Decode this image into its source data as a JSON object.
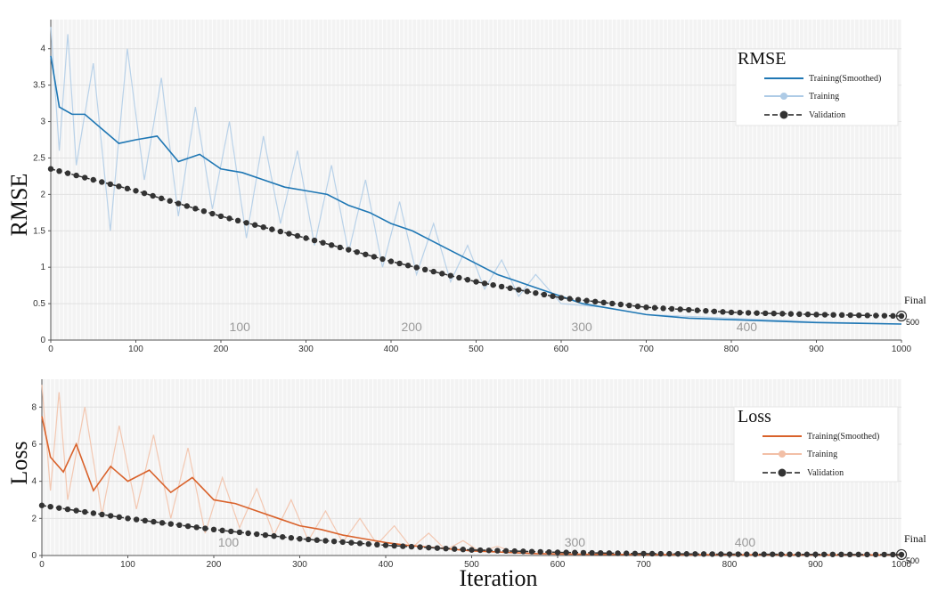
{
  "chart_data": [
    {
      "type": "line",
      "panel": "top",
      "legend_title": "RMSE",
      "ylabel": "RMSE",
      "xlabel": "",
      "legend_position": "top-right",
      "grid": true,
      "xlim": [
        0,
        1000
      ],
      "ylim": [
        0,
        4.4
      ],
      "xticks": [
        0,
        100,
        200,
        300,
        400,
        500,
        600,
        700,
        800,
        900,
        1000
      ],
      "yticks": [
        0,
        0.5,
        1,
        1.5,
        2,
        2.5,
        3,
        3.5,
        4
      ],
      "epoch_markers": [
        {
          "x": 210,
          "label": "100"
        },
        {
          "x": 412,
          "label": "200"
        },
        {
          "x": 612,
          "label": "300"
        },
        {
          "x": 806,
          "label": "400"
        }
      ],
      "final_marker": {
        "x": 1000,
        "y": 0.33,
        "label": "Final",
        "sublabel": "500"
      },
      "series": [
        {
          "name": "Training(Smoothed)",
          "color": "#1f77b4",
          "x": [
            0,
            10,
            25,
            40,
            60,
            80,
            100,
            125,
            150,
            175,
            200,
            225,
            250,
            275,
            300,
            325,
            350,
            375,
            400,
            425,
            450,
            475,
            500,
            525,
            550,
            575,
            600,
            625,
            650,
            675,
            700,
            750,
            800,
            850,
            900,
            950,
            1000
          ],
          "y": [
            3.9,
            3.2,
            3.1,
            3.1,
            2.9,
            2.7,
            2.75,
            2.8,
            2.45,
            2.55,
            2.35,
            2.3,
            2.2,
            2.1,
            2.05,
            2.0,
            1.85,
            1.75,
            1.6,
            1.5,
            1.35,
            1.2,
            1.05,
            0.9,
            0.8,
            0.7,
            0.6,
            0.5,
            0.45,
            0.4,
            0.35,
            0.3,
            0.28,
            0.26,
            0.24,
            0.23,
            0.22
          ]
        },
        {
          "name": "Training",
          "color": "#aecbe6",
          "x": [
            0,
            10,
            20,
            30,
            50,
            70,
            90,
            110,
            130,
            150,
            170,
            190,
            210,
            230,
            250,
            270,
            290,
            310,
            330,
            350,
            370,
            390,
            410,
            430,
            450,
            470,
            490,
            510,
            530,
            550,
            570,
            600,
            650,
            700,
            800,
            900,
            1000
          ],
          "y": [
            4.3,
            2.6,
            4.2,
            2.4,
            3.8,
            1.5,
            4.0,
            2.2,
            3.6,
            1.7,
            3.2,
            1.8,
            3.0,
            1.4,
            2.8,
            1.6,
            2.6,
            1.3,
            2.4,
            1.2,
            2.2,
            1.0,
            1.9,
            0.9,
            1.6,
            0.8,
            1.3,
            0.7,
            1.1,
            0.6,
            0.9,
            0.5,
            0.45,
            0.35,
            0.3,
            0.25,
            0.22
          ]
        },
        {
          "name": "Validation",
          "color": "#333333",
          "x": [
            0,
            100,
            200,
            300,
            400,
            500,
            600,
            700,
            800,
            900,
            1000
          ],
          "y": [
            2.35,
            2.05,
            1.7,
            1.4,
            1.08,
            0.8,
            0.58,
            0.45,
            0.38,
            0.35,
            0.33
          ]
        }
      ]
    },
    {
      "type": "line",
      "panel": "bottom",
      "legend_title": "Loss",
      "ylabel": "Loss",
      "xlabel": "Iteration",
      "legend_position": "top-right",
      "grid": true,
      "xlim": [
        0,
        1000
      ],
      "ylim": [
        0,
        9.5
      ],
      "xticks": [
        0,
        100,
        200,
        300,
        400,
        500,
        600,
        700,
        800,
        900,
        1000
      ],
      "yticks": [
        0,
        2,
        4,
        6,
        8
      ],
      "epoch_markers": [
        {
          "x": 205,
          "label": "100"
        },
        {
          "x": 608,
          "label": "300"
        },
        {
          "x": 806,
          "label": "400"
        }
      ],
      "final_marker": {
        "x": 1000,
        "y": 0.05,
        "label": "Final",
        "sublabel": "500"
      },
      "series": [
        {
          "name": "Training(Smoothed)",
          "color": "#d9622b",
          "x": [
            0,
            10,
            25,
            40,
            60,
            80,
            100,
            125,
            150,
            175,
            200,
            225,
            250,
            275,
            300,
            325,
            350,
            375,
            400,
            425,
            450,
            475,
            500,
            525,
            550,
            575,
            600,
            650,
            700,
            800,
            900,
            1000
          ],
          "y": [
            7.5,
            5.3,
            4.5,
            6.0,
            3.5,
            4.8,
            4.0,
            4.6,
            3.4,
            4.2,
            3.0,
            2.8,
            2.4,
            2.0,
            1.6,
            1.4,
            1.1,
            0.9,
            0.7,
            0.55,
            0.45,
            0.35,
            0.25,
            0.2,
            0.15,
            0.1,
            0.08,
            0.06,
            0.05,
            0.04,
            0.03,
            0.03
          ]
        },
        {
          "name": "Training",
          "color": "#f2bfa6",
          "x": [
            0,
            10,
            20,
            30,
            50,
            70,
            90,
            110,
            130,
            150,
            170,
            190,
            210,
            230,
            250,
            270,
            290,
            310,
            330,
            350,
            370,
            390,
            410,
            430,
            450,
            470,
            490,
            510,
            530,
            550,
            600,
            700,
            800,
            1000
          ],
          "y": [
            9.2,
            3.5,
            8.8,
            3.0,
            8.0,
            2.2,
            7.0,
            2.5,
            6.5,
            2.0,
            5.8,
            1.2,
            4.2,
            1.5,
            3.6,
            1.1,
            3.0,
            0.8,
            2.4,
            0.7,
            2.0,
            0.6,
            1.6,
            0.4,
            1.2,
            0.3,
            0.8,
            0.2,
            0.5,
            0.15,
            0.08,
            0.05,
            0.04,
            0.03
          ]
        },
        {
          "name": "Validation",
          "color": "#333333",
          "x": [
            0,
            100,
            200,
            300,
            400,
            500,
            600,
            700,
            800,
            900,
            1000
          ],
          "y": [
            2.7,
            2.0,
            1.4,
            0.9,
            0.55,
            0.3,
            0.17,
            0.1,
            0.07,
            0.06,
            0.05
          ]
        }
      ]
    }
  ]
}
